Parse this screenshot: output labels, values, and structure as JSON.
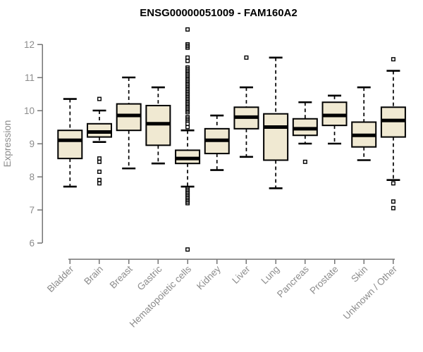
{
  "chart_data": {
    "type": "boxplot",
    "title": "ENSG00000051009 - FAM160A2",
    "ylabel": "Expression",
    "xlabel": "",
    "ylim": [
      5.7,
      12.6
    ],
    "yticks": [
      6,
      7,
      8,
      9,
      10,
      11,
      12
    ],
    "grid": false,
    "legend": "none",
    "categories": [
      "Bladder",
      "Brain",
      "Breast",
      "Gastric",
      "Hematopoietic cells",
      "Kidney",
      "Liver",
      "Lung",
      "Pancreas",
      "Prostate",
      "Skin",
      "Unknown / Other"
    ],
    "boxes": [
      {
        "category": "Bladder",
        "whisker_low": 7.7,
        "q1": 8.55,
        "median": 9.1,
        "q3": 9.4,
        "whisker_high": 10.35,
        "outliers": []
      },
      {
        "category": "Brain",
        "whisker_low": 9.05,
        "q1": 9.2,
        "median": 9.35,
        "q3": 9.6,
        "whisker_high": 10.0,
        "outliers": [
          10.35,
          8.55,
          8.45,
          8.15,
          7.9,
          7.8
        ]
      },
      {
        "category": "Breast",
        "whisker_low": 8.25,
        "q1": 9.4,
        "median": 9.85,
        "q3": 10.2,
        "whisker_high": 11.0,
        "outliers": []
      },
      {
        "category": "Gastric",
        "whisker_low": 8.4,
        "q1": 8.95,
        "median": 9.6,
        "q3": 10.15,
        "whisker_high": 10.7,
        "outliers": []
      },
      {
        "category": "Hematopoietic cells",
        "whisker_low": 7.7,
        "q1": 8.4,
        "median": 8.55,
        "q3": 8.8,
        "whisker_high": 9.4,
        "outliers": [
          12.45,
          12.0,
          11.95,
          11.9,
          11.6,
          11.5,
          11.3,
          11.25,
          11.2,
          11.15,
          11.1,
          11.05,
          11.0,
          10.95,
          10.9,
          10.85,
          10.8,
          10.75,
          10.7,
          10.65,
          10.6,
          10.55,
          10.5,
          10.45,
          10.4,
          10.35,
          10.3,
          10.25,
          10.2,
          10.15,
          10.1,
          10.05,
          10.0,
          9.95,
          9.8,
          9.75,
          9.7,
          9.6,
          9.5,
          7.65,
          7.6,
          7.55,
          7.5,
          7.45,
          7.4,
          7.35,
          7.3,
          7.25,
          7.2,
          5.8
        ]
      },
      {
        "category": "Kidney",
        "whisker_low": 8.2,
        "q1": 8.7,
        "median": 9.1,
        "q3": 9.45,
        "whisker_high": 9.85,
        "outliers": []
      },
      {
        "category": "Liver",
        "whisker_low": 8.6,
        "q1": 9.45,
        "median": 9.8,
        "q3": 10.1,
        "whisker_high": 10.7,
        "outliers": [
          11.6
        ]
      },
      {
        "category": "Lung",
        "whisker_low": 7.65,
        "q1": 8.5,
        "median": 9.5,
        "q3": 9.9,
        "whisker_high": 11.6,
        "outliers": []
      },
      {
        "category": "Pancreas",
        "whisker_low": 9.0,
        "q1": 9.25,
        "median": 9.45,
        "q3": 9.75,
        "whisker_high": 10.25,
        "outliers": [
          8.45
        ]
      },
      {
        "category": "Prostate",
        "whisker_low": 9.0,
        "q1": 9.55,
        "median": 9.85,
        "q3": 10.25,
        "whisker_high": 10.45,
        "outliers": []
      },
      {
        "category": "Skin",
        "whisker_low": 8.5,
        "q1": 8.9,
        "median": 9.25,
        "q3": 9.65,
        "whisker_high": 10.7,
        "outliers": []
      },
      {
        "category": "Unknown / Other",
        "whisker_low": 7.9,
        "q1": 9.2,
        "median": 9.7,
        "q3": 10.1,
        "whisker_high": 11.2,
        "outliers": [
          11.55,
          7.8,
          7.25,
          7.05
        ]
      }
    ],
    "colors": {
      "box_fill": "#F0E9D2",
      "box_border": "#000000",
      "median": "#000000",
      "whisker": "#000000",
      "axis": "#757575",
      "tick_label": "#8C8C8C",
      "title": "#000000",
      "background": "#FFFFFF"
    }
  }
}
